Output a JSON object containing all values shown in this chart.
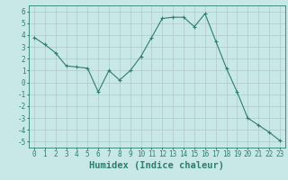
{
  "x": [
    0,
    1,
    2,
    3,
    4,
    5,
    6,
    7,
    8,
    9,
    10,
    11,
    12,
    13,
    14,
    15,
    16,
    17,
    18,
    19,
    20,
    21,
    22,
    23
  ],
  "y": [
    3.8,
    3.2,
    2.5,
    1.4,
    1.3,
    1.2,
    -0.8,
    1.0,
    0.2,
    1.0,
    2.2,
    3.8,
    5.4,
    5.5,
    5.5,
    4.7,
    5.8,
    3.5,
    1.2,
    -0.8,
    -3.0,
    -3.6,
    -4.2,
    -4.9
  ],
  "bg_color": "#c8e8e8",
  "line_color": "#2e7d6e",
  "marker": "+",
  "xlabel": "Humidex (Indice chaleur)",
  "ylim": [
    -5.5,
    6.5
  ],
  "xlim": [
    -0.5,
    23.5
  ],
  "yticks": [
    -5,
    -4,
    -3,
    -2,
    -1,
    0,
    1,
    2,
    3,
    4,
    5,
    6
  ],
  "xticks": [
    0,
    1,
    2,
    3,
    4,
    5,
    6,
    7,
    8,
    9,
    10,
    11,
    12,
    13,
    14,
    15,
    16,
    17,
    18,
    19,
    20,
    21,
    22,
    23
  ],
  "grid_color": "#b0c8c8",
  "tick_label_fontsize": 5.5,
  "xlabel_fontsize": 7.5,
  "linewidth": 0.8,
  "markersize": 3,
  "markeredgewidth": 0.8
}
